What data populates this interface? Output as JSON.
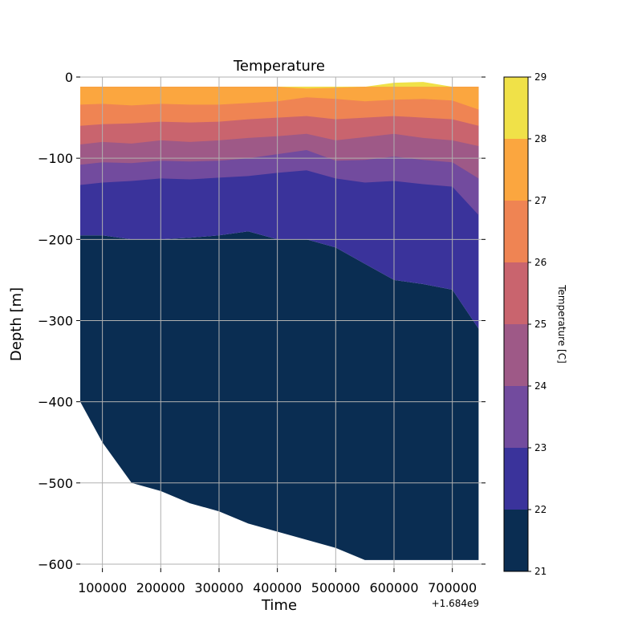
{
  "chart_data": {
    "type": "area",
    "title": "Temperature",
    "xlabel": "Time",
    "ylabel": "Depth [m]",
    "x_offset_label": "+1.684e9",
    "xlim": [
      62000,
      750000
    ],
    "ylim": [
      -605,
      0
    ],
    "grid": true,
    "x_ticks": [
      100000,
      200000,
      300000,
      400000,
      500000,
      600000,
      700000
    ],
    "x_tick_labels": [
      "100000",
      "200000",
      "300000",
      "400000",
      "500000",
      "600000",
      "700000"
    ],
    "y_ticks": [
      0,
      -100,
      -200,
      -300,
      -400,
      -500,
      -600
    ],
    "y_tick_labels": [
      "0",
      "−100",
      "−200",
      "−300",
      "−400",
      "−500",
      "−600"
    ],
    "colorbar": {
      "label": "Temperature [C]",
      "levels": [
        21,
        22,
        23,
        24,
        25,
        26,
        27,
        28,
        29
      ],
      "level_labels": [
        "21",
        "22",
        "23",
        "24",
        "25",
        "26",
        "27",
        "28",
        "29"
      ],
      "colors": [
        "#0a2d52",
        "#3a339b",
        "#724b9e",
        "#9e5987",
        "#c9646e",
        "#ef8453",
        "#fba63f",
        "#f0e148"
      ]
    },
    "x": [
      62000,
      100000,
      150000,
      200000,
      250000,
      300000,
      350000,
      400000,
      450000,
      500000,
      550000,
      600000,
      650000,
      700000,
      745000
    ],
    "surface": [
      -12,
      -12,
      -12,
      -12,
      -12,
      -12,
      -12,
      -12,
      -12,
      -12,
      -12,
      -12,
      -12,
      -12,
      -12
    ],
    "bottom": [
      -400,
      -450,
      -500,
      -510,
      -525,
      -535,
      -550,
      -560,
      -570,
      -580,
      -595,
      -595,
      -595,
      -595,
      -595
    ],
    "isotherms": [
      {
        "temperature": 28,
        "depths": [
          -12,
          -12,
          -12,
          -12,
          -12,
          -12,
          -12,
          -12,
          -14,
          -13,
          -12,
          -7,
          -6,
          -12,
          -12
        ]
      },
      {
        "temperature": 27,
        "depths": [
          -34,
          -33,
          -35,
          -33,
          -34,
          -34,
          -32,
          -30,
          -25,
          -27,
          -30,
          -28,
          -27,
          -29,
          -40
        ]
      },
      {
        "temperature": 26,
        "depths": [
          -60,
          -58,
          -57,
          -55,
          -56,
          -55,
          -52,
          -50,
          -48,
          -52,
          -50,
          -48,
          -50,
          -52,
          -60
        ]
      },
      {
        "temperature": 25,
        "depths": [
          -83,
          -80,
          -82,
          -78,
          -80,
          -78,
          -75,
          -73,
          -70,
          -78,
          -74,
          -70,
          -75,
          -78,
          -85
        ]
      },
      {
        "temperature": 24,
        "depths": [
          -108,
          -105,
          -106,
          -103,
          -104,
          -103,
          -100,
          -95,
          -90,
          -103,
          -102,
          -98,
          -102,
          -105,
          -125
        ]
      },
      {
        "temperature": 23,
        "depths": [
          -133,
          -130,
          -128,
          -125,
          -126,
          -124,
          -122,
          -118,
          -115,
          -125,
          -130,
          -128,
          -132,
          -135,
          -170
        ]
      },
      {
        "temperature": 22,
        "depths": [
          -195,
          -195,
          -200,
          -200,
          -198,
          -195,
          -190,
          -200,
          -200,
          -210,
          -230,
          -250,
          -255,
          -262,
          -310
        ]
      }
    ]
  }
}
